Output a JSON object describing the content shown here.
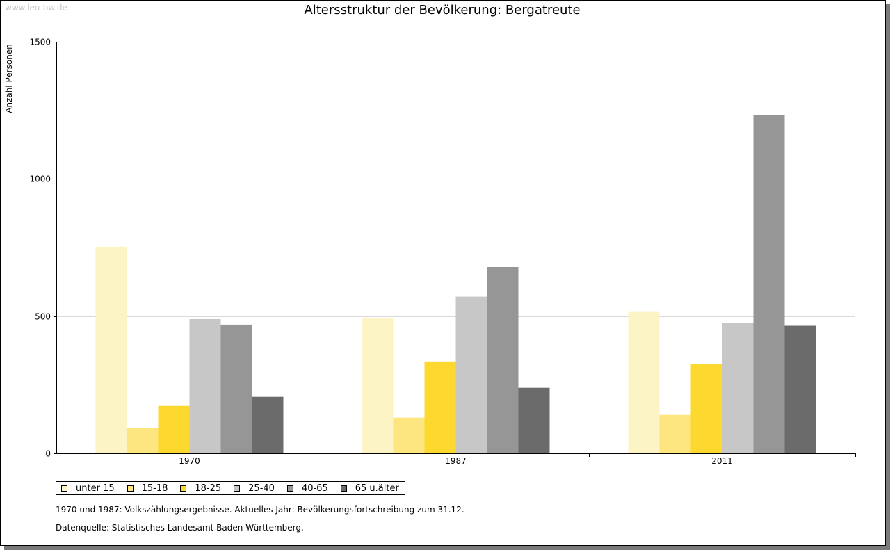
{
  "watermark": "www.leo-bw.de",
  "notes": {
    "line1": "1970 und 1987: Volkszählungsergebnisse. Aktuelles Jahr: Bevölkerungsfortschreibung zum 31.12.",
    "line2": "Datenquelle: Statistisches Landesamt Baden-Württemberg."
  },
  "chart_data": {
    "type": "bar",
    "title": "Altersstruktur der Bevölkerung: Bergatreute",
    "xlabel": "",
    "ylabel": "Anzahl Personen",
    "ylim": [
      0,
      1500
    ],
    "yticks": [
      0,
      500,
      1000,
      1500
    ],
    "grid": true,
    "legend_position": "bottom-left",
    "categories": [
      "1970",
      "1987",
      "2011"
    ],
    "series": [
      {
        "name": "unter 15",
        "color": "#fcf4c4",
        "values": [
          753,
          492,
          518
        ]
      },
      {
        "name": "15-18",
        "color": "#fde680",
        "values": [
          92,
          130,
          140
        ]
      },
      {
        "name": "18-25",
        "color": "#fdd82e",
        "values": [
          173,
          335,
          325
        ]
      },
      {
        "name": "25-40",
        "color": "#c7c7c7",
        "values": [
          489,
          571,
          474
        ]
      },
      {
        "name": "40-65",
        "color": "#969696",
        "values": [
          469,
          679,
          1234
        ]
      },
      {
        "name": "65 u.älter",
        "color": "#6b6b6b",
        "values": [
          206,
          239,
          465
        ]
      }
    ]
  }
}
